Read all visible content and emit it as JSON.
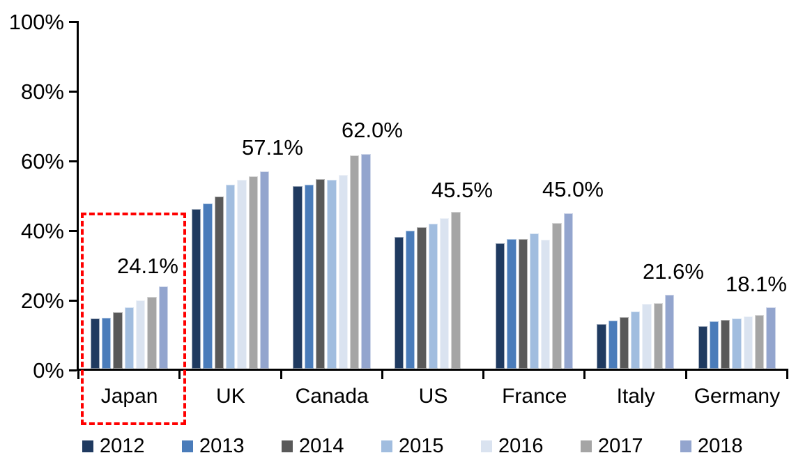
{
  "chart_data": {
    "type": "bar",
    "title": "",
    "xlabel": "",
    "ylabel": "",
    "categories": [
      "Japan",
      "UK",
      "Canada",
      "US",
      "France",
      "Italy",
      "Germany"
    ],
    "series": [
      {
        "name": "2012",
        "color": "#1F3A60",
        "values": [
          14.8,
          46.3,
          52.9,
          38.3,
          36.5,
          13.2,
          12.6
        ]
      },
      {
        "name": "2013",
        "color": "#4A7CBA",
        "values": [
          15.0,
          47.9,
          53.3,
          40.1,
          37.7,
          14.2,
          14.1
        ]
      },
      {
        "name": "2014",
        "color": "#595959",
        "values": [
          16.6,
          49.9,
          54.8,
          41.1,
          37.7,
          15.2,
          14.4
        ]
      },
      {
        "name": "2015",
        "color": "#A1BDDF",
        "values": [
          18.1,
          53.2,
          54.6,
          42.1,
          39.3,
          16.8,
          14.8
        ]
      },
      {
        "name": "2016",
        "color": "#DAE3F0",
        "values": [
          20.1,
          54.7,
          56.1,
          43.6,
          37.4,
          19.0,
          15.4
        ]
      },
      {
        "name": "2017",
        "color": "#A5A5A5",
        "values": [
          21.1,
          55.7,
          61.6,
          45.5,
          42.3,
          19.2,
          15.9
        ]
      },
      {
        "name": "2018",
        "color": "#93A5CE",
        "values": [
          24.1,
          57.1,
          62.0,
          null,
          45.0,
          21.6,
          18.1
        ]
      }
    ],
    "annotations": [
      {
        "category": "Japan",
        "text": "24.1%"
      },
      {
        "category": "UK",
        "text": "57.1%"
      },
      {
        "category": "Canada",
        "text": "62.0%"
      },
      {
        "category": "US",
        "text": "45.5%"
      },
      {
        "category": "France",
        "text": "45.0%"
      },
      {
        "category": "Italy",
        "text": "21.6%"
      },
      {
        "category": "Germany",
        "text": "18.1%"
      }
    ],
    "y_axis": {
      "min": 0,
      "max": 100,
      "tick_labels": [
        "0%",
        "20%",
        "40%",
        "60%",
        "80%",
        "100%"
      ],
      "grid": false
    },
    "legend": {
      "position": "bottom",
      "entries": [
        "2012",
        "2013",
        "2014",
        "2015",
        "2016",
        "2017",
        "2018"
      ]
    },
    "highlight": {
      "category": "Japan",
      "style": "dashed-box",
      "color": "#FF0000"
    }
  }
}
